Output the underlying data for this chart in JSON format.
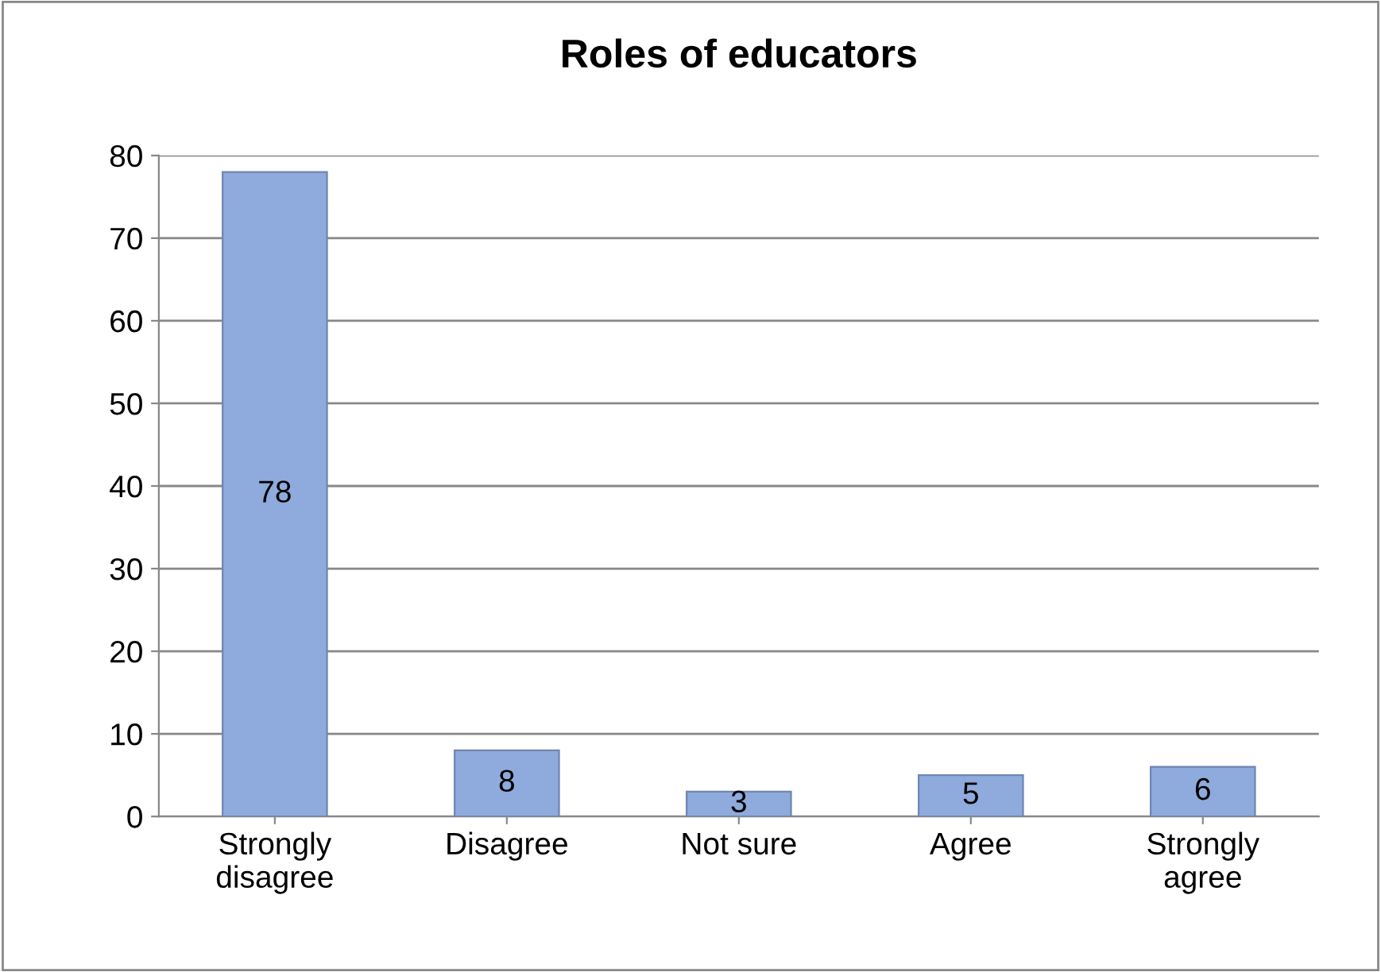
{
  "chart_data": {
    "type": "bar",
    "title": "Roles of educators",
    "categories": [
      "Strongly\ndisagree",
      "Disagree",
      "Not sure",
      "Agree",
      "Strongly\nagree"
    ],
    "values": [
      78,
      8,
      3,
      5,
      6
    ],
    "color": "#8faadc",
    "ylim": [
      0,
      80
    ],
    "yticks": [
      0,
      10,
      20,
      30,
      40,
      50,
      60,
      70,
      80
    ],
    "grid": "y",
    "data_labels": true
  }
}
